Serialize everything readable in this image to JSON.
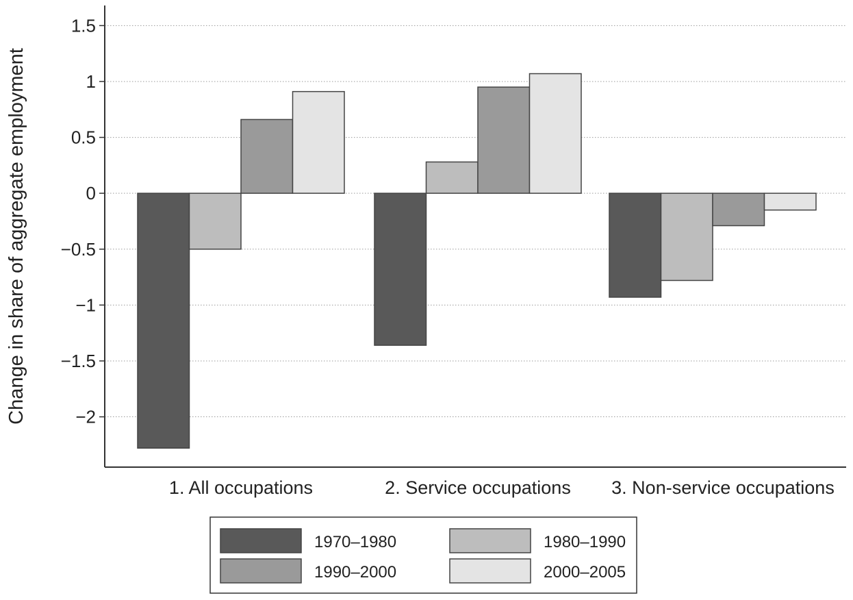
{
  "chart_data": {
    "type": "bar",
    "title": "",
    "xlabel": "",
    "ylabel": "Change in share of aggregate employment",
    "categories": [
      "1. All occupations",
      "2. Service occupations",
      "3. Non-service occupations"
    ],
    "series": [
      {
        "name": "1970–1980",
        "values": [
          -2.28,
          -1.36,
          -0.93
        ],
        "color": "#595959"
      },
      {
        "name": "1980–1990",
        "values": [
          -0.5,
          0.28,
          -0.78
        ],
        "color": "#bdbdbd"
      },
      {
        "name": "1990–2000",
        "values": [
          0.66,
          0.95,
          -0.29
        ],
        "color": "#9a9a9a"
      },
      {
        "name": "2000–2005",
        "values": [
          0.91,
          1.07,
          -0.15
        ],
        "color": "#e4e4e4"
      }
    ],
    "yticks": [
      -2,
      -1.5,
      -1,
      -0.5,
      0,
      0.5,
      1,
      1.5
    ],
    "ytick_labels": [
      "−2",
      "−1.5",
      "−1",
      "−0.5",
      "0",
      "0.5",
      "1",
      "1.5"
    ],
    "ylim": [
      -2.45,
      1.68
    ],
    "grid": true,
    "legend_position": "bottom-center"
  }
}
